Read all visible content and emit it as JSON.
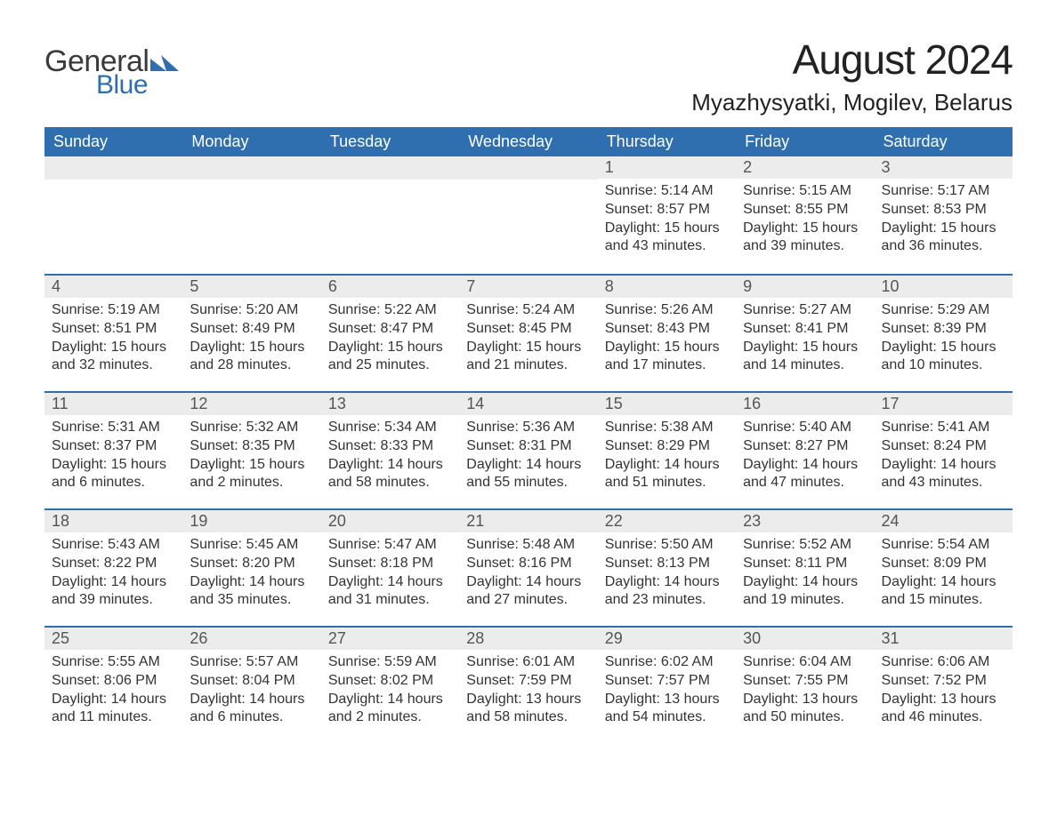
{
  "logo": {
    "text_general": "General",
    "text_blue": "Blue",
    "mark_color": "#2f6fb0"
  },
  "header": {
    "month_title": "August 2024",
    "location": "Myazhysyatki, Mogilev, Belarus"
  },
  "colors": {
    "header_bg": "#2f6fb0",
    "header_text": "#ffffff",
    "daynum_bg": "#ececec",
    "daynum_border": "#2f6fb0",
    "body_text": "#333333",
    "page_bg": "#ffffff"
  },
  "weekdays": [
    "Sunday",
    "Monday",
    "Tuesday",
    "Wednesday",
    "Thursday",
    "Friday",
    "Saturday"
  ],
  "weeks": [
    [
      null,
      null,
      null,
      null,
      {
        "day": "1",
        "sunrise": "Sunrise: 5:14 AM",
        "sunset": "Sunset: 8:57 PM",
        "daylight1": "Daylight: 15 hours",
        "daylight2": "and 43 minutes."
      },
      {
        "day": "2",
        "sunrise": "Sunrise: 5:15 AM",
        "sunset": "Sunset: 8:55 PM",
        "daylight1": "Daylight: 15 hours",
        "daylight2": "and 39 minutes."
      },
      {
        "day": "3",
        "sunrise": "Sunrise: 5:17 AM",
        "sunset": "Sunset: 8:53 PM",
        "daylight1": "Daylight: 15 hours",
        "daylight2": "and 36 minutes."
      }
    ],
    [
      {
        "day": "4",
        "sunrise": "Sunrise: 5:19 AM",
        "sunset": "Sunset: 8:51 PM",
        "daylight1": "Daylight: 15 hours",
        "daylight2": "and 32 minutes."
      },
      {
        "day": "5",
        "sunrise": "Sunrise: 5:20 AM",
        "sunset": "Sunset: 8:49 PM",
        "daylight1": "Daylight: 15 hours",
        "daylight2": "and 28 minutes."
      },
      {
        "day": "6",
        "sunrise": "Sunrise: 5:22 AM",
        "sunset": "Sunset: 8:47 PM",
        "daylight1": "Daylight: 15 hours",
        "daylight2": "and 25 minutes."
      },
      {
        "day": "7",
        "sunrise": "Sunrise: 5:24 AM",
        "sunset": "Sunset: 8:45 PM",
        "daylight1": "Daylight: 15 hours",
        "daylight2": "and 21 minutes."
      },
      {
        "day": "8",
        "sunrise": "Sunrise: 5:26 AM",
        "sunset": "Sunset: 8:43 PM",
        "daylight1": "Daylight: 15 hours",
        "daylight2": "and 17 minutes."
      },
      {
        "day": "9",
        "sunrise": "Sunrise: 5:27 AM",
        "sunset": "Sunset: 8:41 PM",
        "daylight1": "Daylight: 15 hours",
        "daylight2": "and 14 minutes."
      },
      {
        "day": "10",
        "sunrise": "Sunrise: 5:29 AM",
        "sunset": "Sunset: 8:39 PM",
        "daylight1": "Daylight: 15 hours",
        "daylight2": "and 10 minutes."
      }
    ],
    [
      {
        "day": "11",
        "sunrise": "Sunrise: 5:31 AM",
        "sunset": "Sunset: 8:37 PM",
        "daylight1": "Daylight: 15 hours",
        "daylight2": "and 6 minutes."
      },
      {
        "day": "12",
        "sunrise": "Sunrise: 5:32 AM",
        "sunset": "Sunset: 8:35 PM",
        "daylight1": "Daylight: 15 hours",
        "daylight2": "and 2 minutes."
      },
      {
        "day": "13",
        "sunrise": "Sunrise: 5:34 AM",
        "sunset": "Sunset: 8:33 PM",
        "daylight1": "Daylight: 14 hours",
        "daylight2": "and 58 minutes."
      },
      {
        "day": "14",
        "sunrise": "Sunrise: 5:36 AM",
        "sunset": "Sunset: 8:31 PM",
        "daylight1": "Daylight: 14 hours",
        "daylight2": "and 55 minutes."
      },
      {
        "day": "15",
        "sunrise": "Sunrise: 5:38 AM",
        "sunset": "Sunset: 8:29 PM",
        "daylight1": "Daylight: 14 hours",
        "daylight2": "and 51 minutes."
      },
      {
        "day": "16",
        "sunrise": "Sunrise: 5:40 AM",
        "sunset": "Sunset: 8:27 PM",
        "daylight1": "Daylight: 14 hours",
        "daylight2": "and 47 minutes."
      },
      {
        "day": "17",
        "sunrise": "Sunrise: 5:41 AM",
        "sunset": "Sunset: 8:24 PM",
        "daylight1": "Daylight: 14 hours",
        "daylight2": "and 43 minutes."
      }
    ],
    [
      {
        "day": "18",
        "sunrise": "Sunrise: 5:43 AM",
        "sunset": "Sunset: 8:22 PM",
        "daylight1": "Daylight: 14 hours",
        "daylight2": "and 39 minutes."
      },
      {
        "day": "19",
        "sunrise": "Sunrise: 5:45 AM",
        "sunset": "Sunset: 8:20 PM",
        "daylight1": "Daylight: 14 hours",
        "daylight2": "and 35 minutes."
      },
      {
        "day": "20",
        "sunrise": "Sunrise: 5:47 AM",
        "sunset": "Sunset: 8:18 PM",
        "daylight1": "Daylight: 14 hours",
        "daylight2": "and 31 minutes."
      },
      {
        "day": "21",
        "sunrise": "Sunrise: 5:48 AM",
        "sunset": "Sunset: 8:16 PM",
        "daylight1": "Daylight: 14 hours",
        "daylight2": "and 27 minutes."
      },
      {
        "day": "22",
        "sunrise": "Sunrise: 5:50 AM",
        "sunset": "Sunset: 8:13 PM",
        "daylight1": "Daylight: 14 hours",
        "daylight2": "and 23 minutes."
      },
      {
        "day": "23",
        "sunrise": "Sunrise: 5:52 AM",
        "sunset": "Sunset: 8:11 PM",
        "daylight1": "Daylight: 14 hours",
        "daylight2": "and 19 minutes."
      },
      {
        "day": "24",
        "sunrise": "Sunrise: 5:54 AM",
        "sunset": "Sunset: 8:09 PM",
        "daylight1": "Daylight: 14 hours",
        "daylight2": "and 15 minutes."
      }
    ],
    [
      {
        "day": "25",
        "sunrise": "Sunrise: 5:55 AM",
        "sunset": "Sunset: 8:06 PM",
        "daylight1": "Daylight: 14 hours",
        "daylight2": "and 11 minutes."
      },
      {
        "day": "26",
        "sunrise": "Sunrise: 5:57 AM",
        "sunset": "Sunset: 8:04 PM",
        "daylight1": "Daylight: 14 hours",
        "daylight2": "and 6 minutes."
      },
      {
        "day": "27",
        "sunrise": "Sunrise: 5:59 AM",
        "sunset": "Sunset: 8:02 PM",
        "daylight1": "Daylight: 14 hours",
        "daylight2": "and 2 minutes."
      },
      {
        "day": "28",
        "sunrise": "Sunrise: 6:01 AM",
        "sunset": "Sunset: 7:59 PM",
        "daylight1": "Daylight: 13 hours",
        "daylight2": "and 58 minutes."
      },
      {
        "day": "29",
        "sunrise": "Sunrise: 6:02 AM",
        "sunset": "Sunset: 7:57 PM",
        "daylight1": "Daylight: 13 hours",
        "daylight2": "and 54 minutes."
      },
      {
        "day": "30",
        "sunrise": "Sunrise: 6:04 AM",
        "sunset": "Sunset: 7:55 PM",
        "daylight1": "Daylight: 13 hours",
        "daylight2": "and 50 minutes."
      },
      {
        "day": "31",
        "sunrise": "Sunrise: 6:06 AM",
        "sunset": "Sunset: 7:52 PM",
        "daylight1": "Daylight: 13 hours",
        "daylight2": "and 46 minutes."
      }
    ]
  ]
}
